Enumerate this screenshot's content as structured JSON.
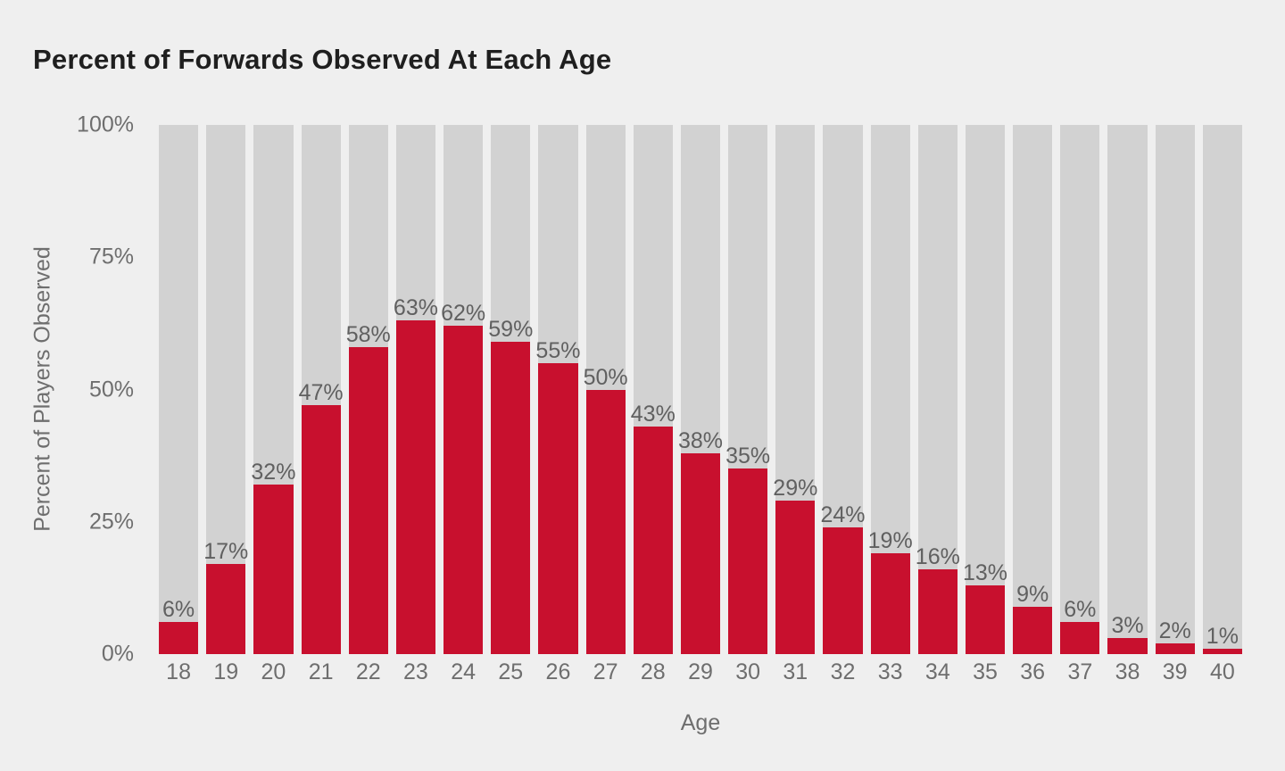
{
  "title": "Percent of Forwards Observed At Each Age",
  "colors": {
    "background": "#EFEFEF",
    "track_gray": "#D2D2D2",
    "bar_red": "#C8102E",
    "title_text": "#1F1F1F",
    "axis_text": "#6E6E6E",
    "value_label_text": "#606060"
  },
  "chart_data": {
    "type": "bar",
    "title": "Percent of Forwards Observed At Each Age",
    "xlabel": "Age",
    "ylabel": "Percent of Players Observed",
    "categories": [
      "18",
      "19",
      "20",
      "21",
      "22",
      "23",
      "24",
      "25",
      "26",
      "27",
      "28",
      "29",
      "30",
      "31",
      "32",
      "33",
      "34",
      "35",
      "36",
      "37",
      "38",
      "39",
      "40"
    ],
    "values": [
      6,
      17,
      32,
      47,
      58,
      63,
      62,
      59,
      55,
      50,
      43,
      38,
      35,
      29,
      24,
      19,
      16,
      13,
      9,
      6,
      3,
      2,
      1
    ],
    "value_labels": [
      "6%",
      "17%",
      "32%",
      "47%",
      "58%",
      "63%",
      "62%",
      "59%",
      "55%",
      "50%",
      "43%",
      "38%",
      "35%",
      "29%",
      "24%",
      "19%",
      "16%",
      "13%",
      "9%",
      "6%",
      "3%",
      "2%",
      "1%"
    ],
    "yticks": [
      {
        "label": "100%",
        "value": 100
      },
      {
        "label": "75%",
        "value": 75
      },
      {
        "label": "50%",
        "value": 50
      },
      {
        "label": "25%",
        "value": 25
      },
      {
        "label": "0%",
        "value": 0
      }
    ],
    "ylim": [
      0,
      100
    ],
    "grid": false,
    "legend_position": "none",
    "style_note": "full-height gray background track behind each red percentage bar; value label sits directly above each red bar top"
  }
}
